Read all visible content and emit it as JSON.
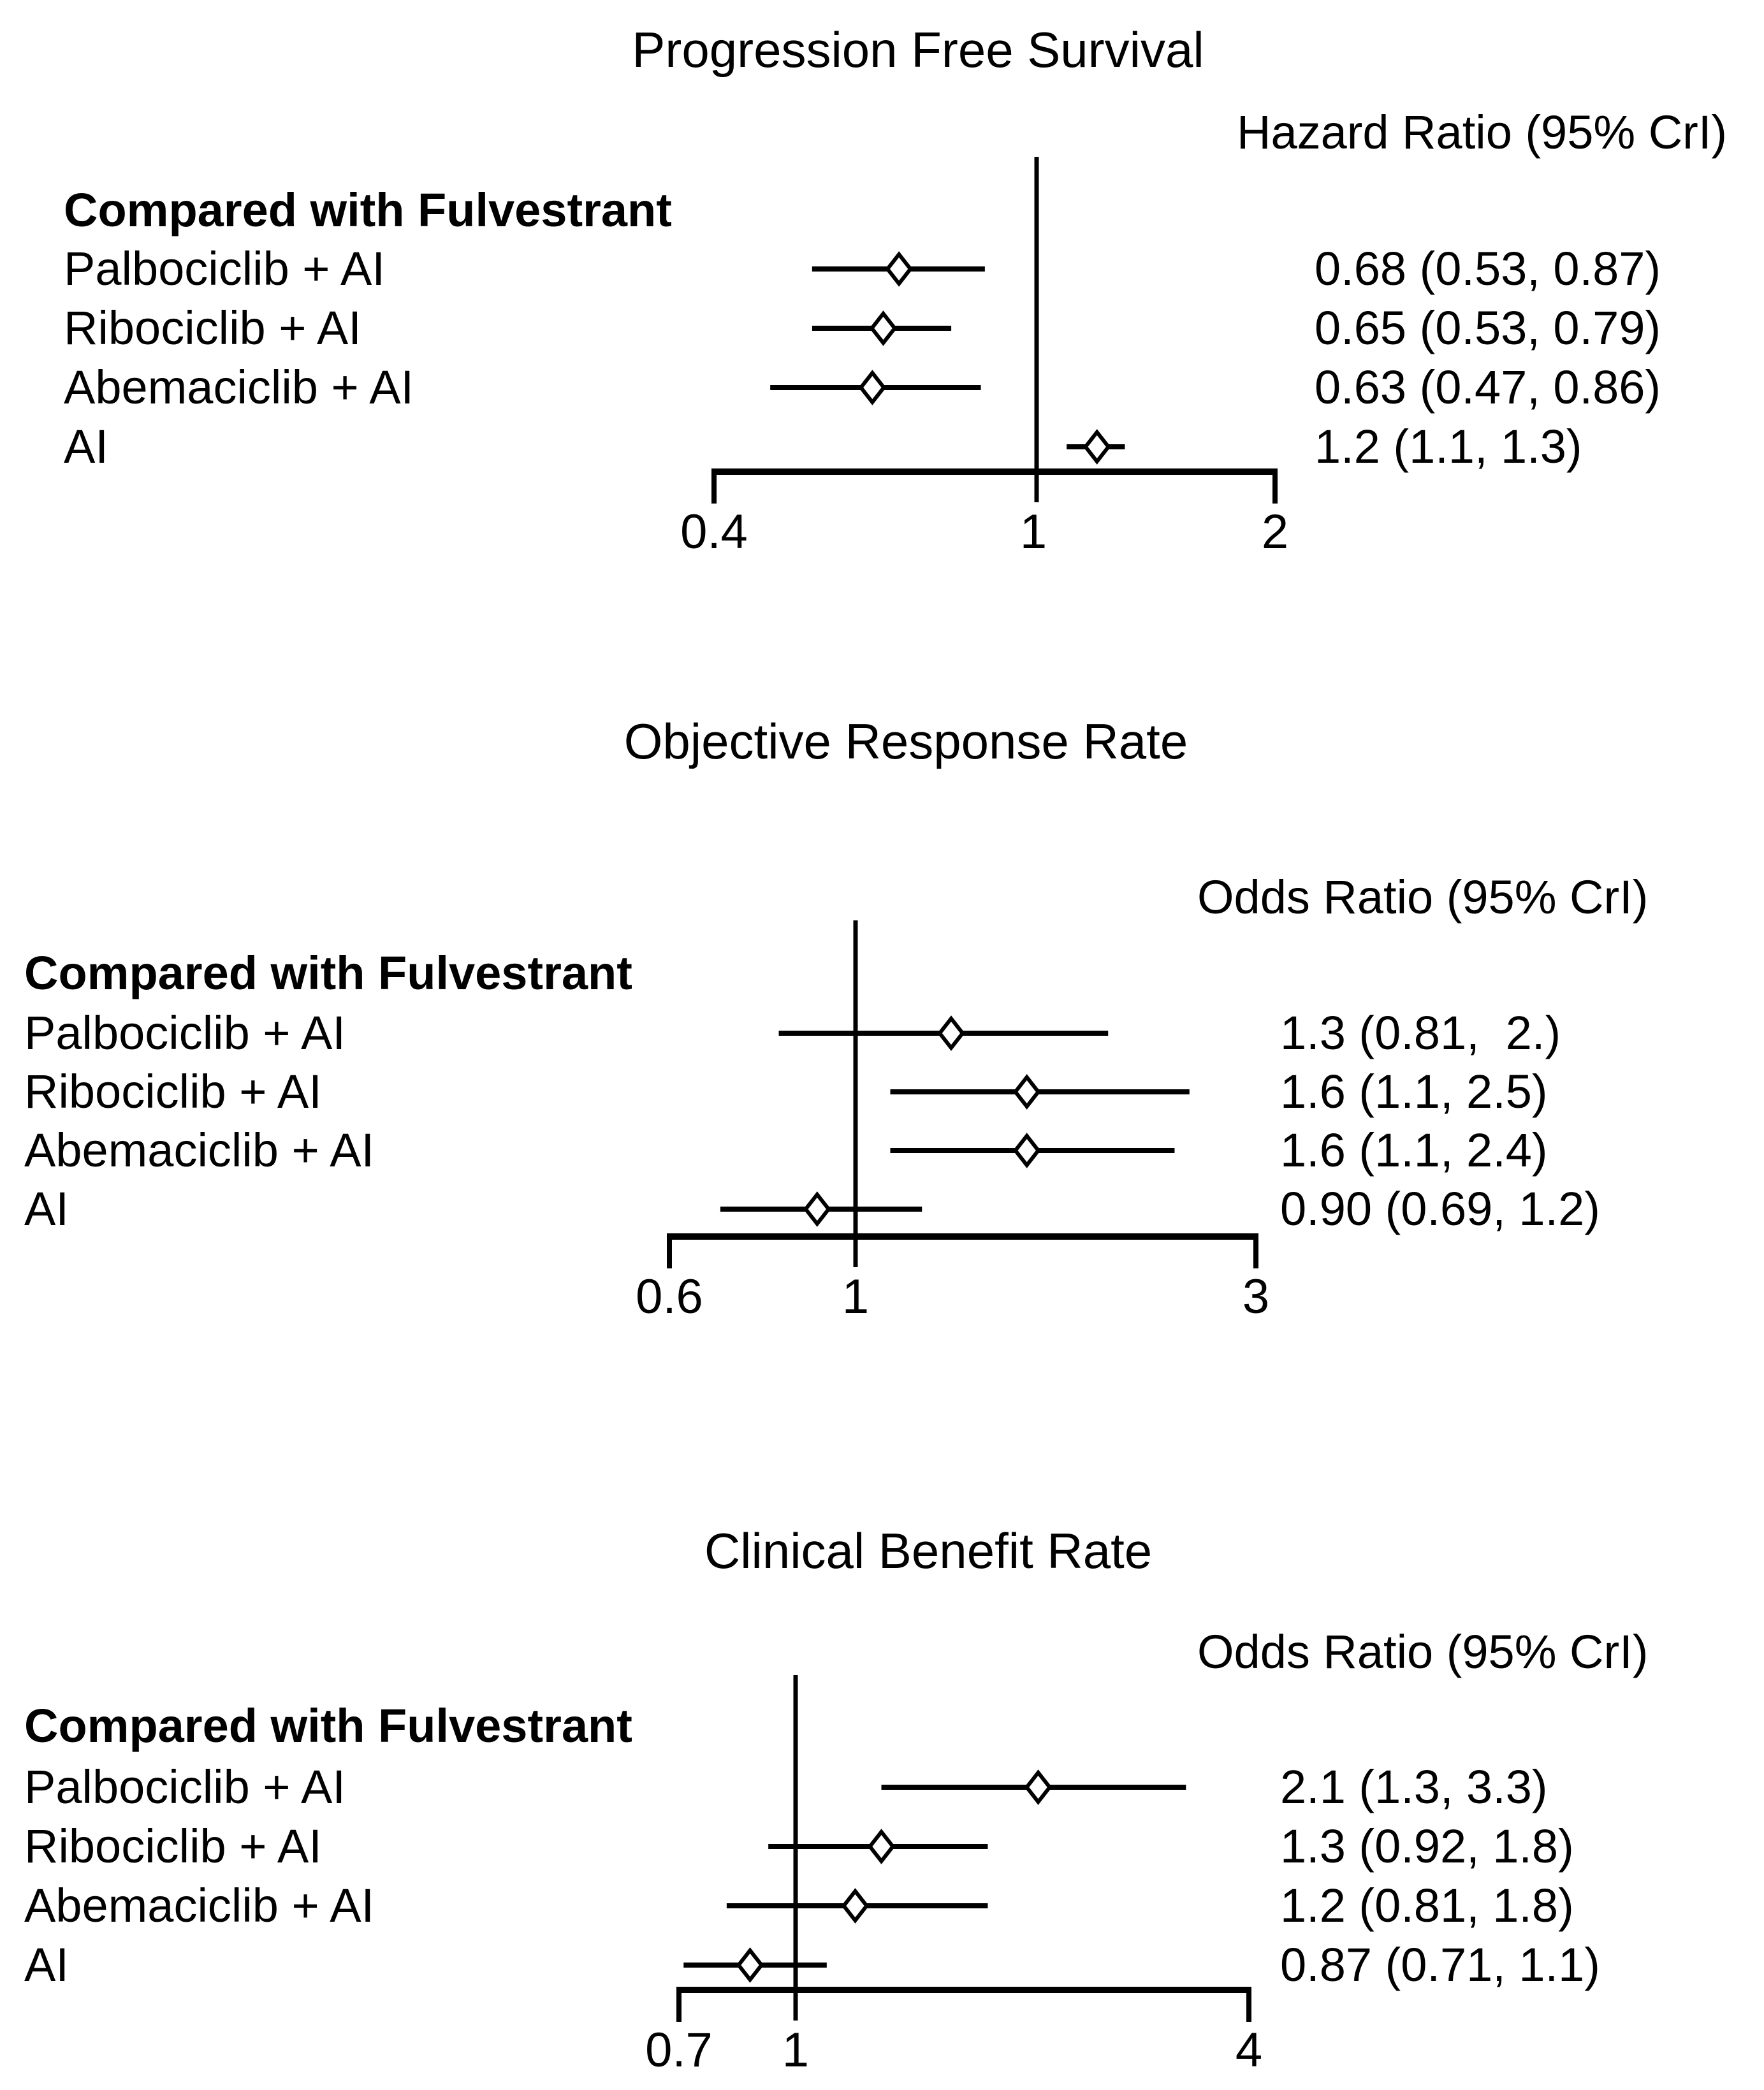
{
  "figure": {
    "background": "#ffffff",
    "text_color": "#000000",
    "marker_fill": "#ffffff",
    "marker_stroke": "#000000"
  },
  "chart_data": [
    {
      "type": "forest_plot",
      "title": "Progression Free Survival",
      "ratio_header": "Hazard Ratio (95% CrI)",
      "group_label": "Compared with Fulvestrant",
      "effect_measure": "hazard ratio vs fulvestrant",
      "rows": [
        {
          "label": "Palbociclib + AI",
          "est": 0.68,
          "lo": 0.53,
          "hi": 0.87,
          "value_text": "0.68 (0.53, 0.87)"
        },
        {
          "label": "Ribociclib + AI",
          "est": 0.65,
          "lo": 0.53,
          "hi": 0.79,
          "value_text": "0.65 (0.53, 0.79)"
        },
        {
          "label": "Abemaciclib + AI",
          "est": 0.63,
          "lo": 0.47,
          "hi": 0.86,
          "value_text": "0.63 (0.47, 0.86)"
        },
        {
          "label": "AI",
          "est": 1.2,
          "lo": 1.1,
          "hi": 1.3,
          "value_text": "1.2 (1.1, 1.3)"
        }
      ],
      "axis": {
        "scale": "log",
        "min": 0.4,
        "max": 2,
        "ref_value": 1,
        "ticks": [
          {
            "label": "0.4",
            "value": 0.4
          },
          {
            "label": "1",
            "value": 1
          },
          {
            "label": "2",
            "value": 2
          }
        ]
      }
    },
    {
      "type": "forest_plot",
      "title": "Objective Response Rate",
      "ratio_header": "Odds Ratio (95% CrI)",
      "group_label": "Compared with Fulvestrant",
      "effect_measure": "odds ratio vs fulvestrant",
      "rows": [
        {
          "label": "Palbociclib + AI",
          "est": 1.3,
          "lo": 0.81,
          "hi": 2.0,
          "value_text": "1.3 (0.81,  2.)"
        },
        {
          "label": "Ribociclib + AI",
          "est": 1.6,
          "lo": 1.1,
          "hi": 2.5,
          "value_text": "1.6 (1.1, 2.5)"
        },
        {
          "label": "Abemaciclib + AI",
          "est": 1.6,
          "lo": 1.1,
          "hi": 2.4,
          "value_text": "1.6 (1.1, 2.4)"
        },
        {
          "label": "AI",
          "est": 0.9,
          "lo": 0.69,
          "hi": 1.2,
          "value_text": "0.90 (0.69, 1.2)"
        }
      ],
      "axis": {
        "scale": "log",
        "min": 0.6,
        "max": 3,
        "ref_value": 1,
        "ticks": [
          {
            "label": "0.6",
            "value": 0.6
          },
          {
            "label": "1",
            "value": 1
          },
          {
            "label": "3",
            "value": 3
          }
        ]
      }
    },
    {
      "type": "forest_plot",
      "title": "Clinical Benefit Rate",
      "ratio_header": "Odds Ratio (95% CrI)",
      "group_label": "Compared with Fulvestrant",
      "effect_measure": "odds ratio vs fulvestrant",
      "rows": [
        {
          "label": "Palbociclib + AI",
          "est": 2.1,
          "lo": 1.3,
          "hi": 3.3,
          "value_text": "2.1 (1.3, 3.3)"
        },
        {
          "label": "Ribociclib + AI",
          "est": 1.3,
          "lo": 0.92,
          "hi": 1.8,
          "value_text": "1.3 (0.92, 1.8)"
        },
        {
          "label": "Abemaciclib + AI",
          "est": 1.2,
          "lo": 0.81,
          "hi": 1.8,
          "value_text": "1.2 (0.81, 1.8)"
        },
        {
          "label": "AI",
          "est": 0.87,
          "lo": 0.71,
          "hi": 1.1,
          "value_text": "0.87 (0.71, 1.1)"
        }
      ],
      "axis": {
        "scale": "log",
        "min": 0.7,
        "max": 4,
        "ref_value": 1,
        "ticks": [
          {
            "label": "0.7",
            "value": 0.7
          },
          {
            "label": "1",
            "value": 1
          },
          {
            "label": "4",
            "value": 4
          }
        ]
      }
    }
  ]
}
